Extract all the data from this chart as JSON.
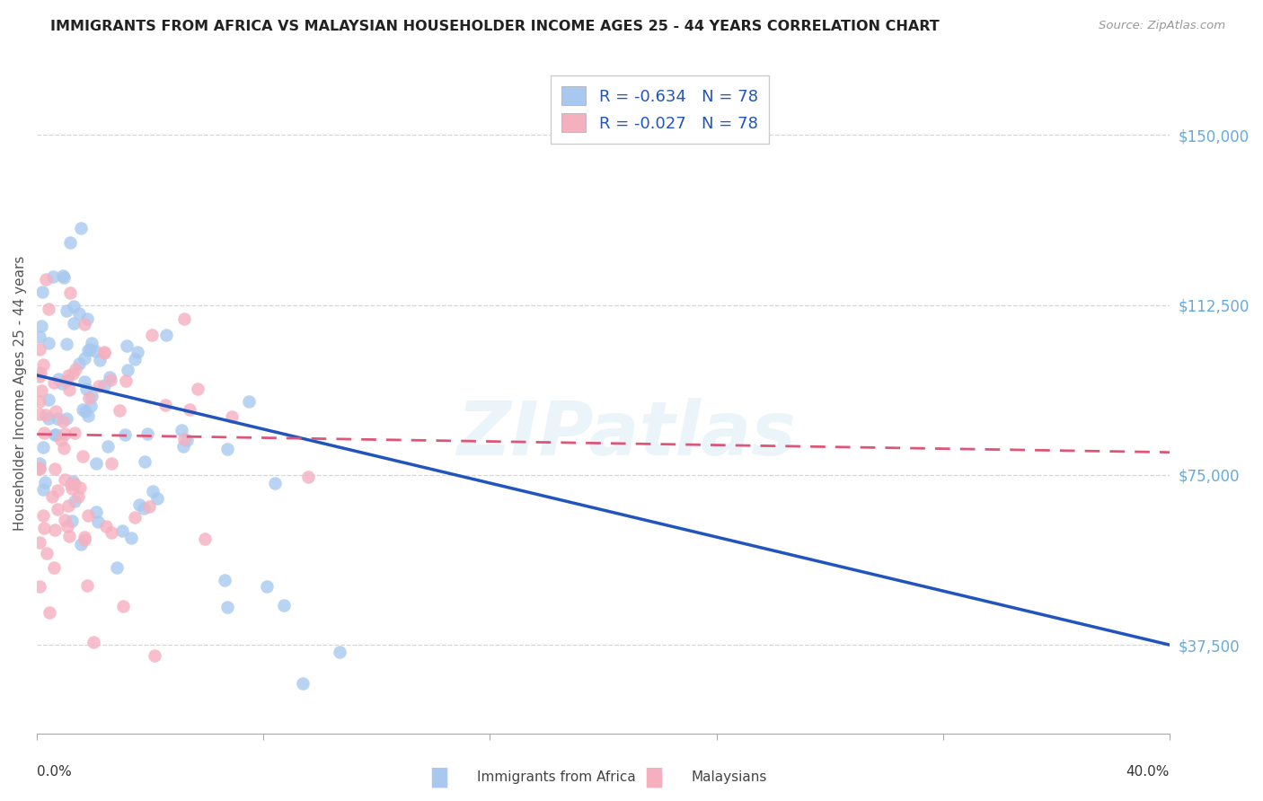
{
  "title": "IMMIGRANTS FROM AFRICA VS MALAYSIAN HOUSEHOLDER INCOME AGES 25 - 44 YEARS CORRELATION CHART",
  "source": "Source: ZipAtlas.com",
  "ylabel": "Householder Income Ages 25 - 44 years",
  "yticks": [
    37500,
    75000,
    112500,
    150000
  ],
  "ytick_labels": [
    "$37,500",
    "$75,000",
    "$112,500",
    "$150,000"
  ],
  "xtick_positions": [
    0.0,
    0.08,
    0.16,
    0.24,
    0.32,
    0.4
  ],
  "xmin": 0.0,
  "xmax": 0.4,
  "ymin": 18000,
  "ymax": 168000,
  "africa_R": -0.634,
  "africa_N": 78,
  "malaysia_R": -0.027,
  "malaysia_N": 78,
  "africa_color": "#a8c8f0",
  "malaysia_color": "#f5b0c0",
  "africa_line_color": "#2255bb",
  "malaysia_line_color": "#dd5577",
  "legend_label_africa": "Immigrants from Africa",
  "legend_label_malaysia": "Malaysians",
  "background_color": "#ffffff",
  "grid_color": "#cccccc",
  "title_color": "#222222",
  "source_color": "#999999",
  "yaxis_label_color": "#66aadd",
  "watermark": "ZIPatlas",
  "seed": 7
}
